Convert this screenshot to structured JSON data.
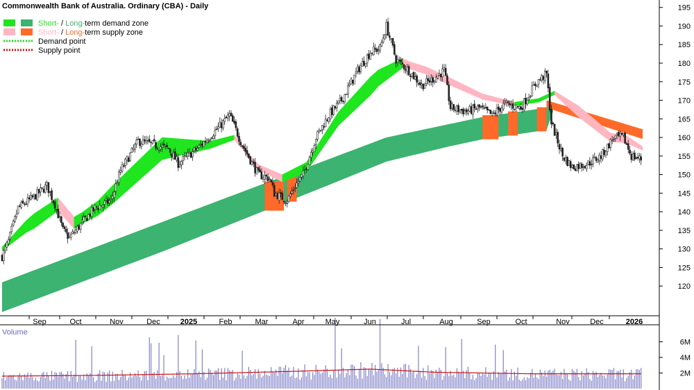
{
  "colors": {
    "short_demand": "#1ee61e",
    "long_demand": "#3cb371",
    "short_supply": "#ffb6c1",
    "long_supply": "#ff6a2a",
    "demand_point": "#1ee61e",
    "supply_point": "#e01010",
    "volume": "#8080c8",
    "volume_ma": "#cc1010",
    "candle": "#222222",
    "grid": "#333333"
  },
  "chart_data": {
    "type": "candlestick",
    "title": "Commonwealth Bank of Australia. Ordinary (CBA) - Daily",
    "legend": {
      "placement": "top-left",
      "items": [
        {
          "parts": [
            "Short-",
            " / ",
            "Long-",
            "term demand zone"
          ],
          "swatches": [
            "short_demand",
            "long_demand"
          ],
          "kind": "box"
        },
        {
          "parts": [
            "Short-",
            " / ",
            "Long-",
            "term supply zone"
          ],
          "swatches": [
            "short_supply",
            "long_supply"
          ],
          "kind": "box"
        },
        {
          "parts": [
            "Demand point"
          ],
          "swatches": [
            "demand_point"
          ],
          "kind": "dots"
        },
        {
          "parts": [
            "Supply point"
          ],
          "swatches": [
            "supply_point"
          ],
          "kind": "dots"
        }
      ]
    },
    "x_labels": [
      "Sep",
      "Oct",
      "Nov",
      "Dec",
      "2025",
      "Feb",
      "Mar",
      "Apr",
      "May",
      "Jun",
      "Jul",
      "Aug",
      "Sep",
      "Oct",
      "Nov",
      "Dec",
      "2026"
    ],
    "x_label_bold": [
      false,
      false,
      false,
      false,
      true,
      false,
      false,
      false,
      false,
      false,
      false,
      false,
      false,
      false,
      false,
      false,
      true
    ],
    "price_axis": {
      "ylim": [
        112,
        197
      ],
      "ticks": [
        120,
        125,
        130,
        135,
        140,
        145,
        150,
        155,
        160,
        165,
        170,
        175,
        180,
        185,
        190,
        195
      ]
    },
    "volume_axis": {
      "title": "Volume",
      "ylim": [
        0,
        8
      ],
      "tick_labels": [
        "6M",
        "4M",
        "2M"
      ],
      "ticks": [
        6,
        4,
        2
      ]
    },
    "price_anchors": [
      [
        0,
        128
      ],
      [
        4,
        132
      ],
      [
        10,
        141
      ],
      [
        20,
        144
      ],
      [
        28,
        147
      ],
      [
        33,
        142
      ],
      [
        38,
        135
      ],
      [
        42,
        133
      ],
      [
        50,
        137
      ],
      [
        58,
        141
      ],
      [
        68,
        143
      ],
      [
        74,
        151
      ],
      [
        85,
        159
      ],
      [
        95,
        158
      ],
      [
        104,
        157
      ],
      [
        110,
        153
      ],
      [
        122,
        157
      ],
      [
        136,
        163
      ],
      [
        142,
        166
      ],
      [
        150,
        158
      ],
      [
        160,
        150
      ],
      [
        167,
        149
      ],
      [
        170,
        145
      ],
      [
        178,
        143
      ],
      [
        183,
        147
      ],
      [
        188,
        150
      ],
      [
        196,
        160
      ],
      [
        204,
        166
      ],
      [
        212,
        170
      ],
      [
        222,
        178
      ],
      [
        230,
        183
      ],
      [
        236,
        184
      ],
      [
        240,
        190
      ],
      [
        246,
        181
      ],
      [
        254,
        178
      ],
      [
        262,
        174
      ],
      [
        270,
        176
      ],
      [
        276,
        178
      ],
      [
        280,
        168
      ],
      [
        290,
        167
      ],
      [
        298,
        168
      ],
      [
        306,
        166
      ],
      [
        314,
        169
      ],
      [
        324,
        168
      ],
      [
        334,
        175
      ],
      [
        340,
        177
      ],
      [
        343,
        164
      ],
      [
        350,
        155
      ],
      [
        356,
        152
      ],
      [
        366,
        153
      ],
      [
        374,
        155
      ],
      [
        382,
        160
      ],
      [
        388,
        160
      ],
      [
        393,
        155
      ],
      [
        400,
        154
      ]
    ],
    "volume_anchors": [
      [
        0,
        1.6
      ],
      [
        60,
        1.7
      ],
      [
        120,
        1.9
      ],
      [
        180,
        2.2
      ],
      [
        230,
        2.5
      ],
      [
        270,
        2.1
      ],
      [
        330,
        1.9
      ],
      [
        400,
        1.9
      ]
    ],
    "zones": {
      "long": [
        {
          "x": [
            0,
            400
          ],
          "top": [
            [
              0,
              121
            ],
            [
              80,
              134
            ],
            [
              160,
              147
            ],
            [
              240,
              160
            ],
            [
              300,
              165.5
            ],
            [
              340,
              168
            ],
            [
              400,
              170
            ]
          ],
          "width": [
            [
              0,
              8
            ],
            [
              100,
              8
            ],
            [
              200,
              7
            ],
            [
              280,
              6
            ],
            [
              340,
              6
            ],
            [
              345,
              0
            ],
            [
              400,
              0
            ]
          ]
        }
      ],
      "short": [
        {
          "x": [
            0,
            400
          ],
          "mid": [
            [
              0,
              130
            ],
            [
              15,
              136
            ],
            [
              35,
              142
            ],
            [
              45,
              137
            ],
            [
              60,
              141
            ],
            [
              75,
              147
            ],
            [
              100,
              157
            ],
            [
              130,
              158
            ],
            [
              145,
              160
            ],
            [
              160,
              152
            ],
            [
              175,
              149
            ],
            [
              190,
              152
            ],
            [
              210,
              165
            ],
            [
              235,
              176
            ],
            [
              250,
              180
            ],
            [
              265,
              178
            ],
            [
              280,
              175
            ],
            [
              300,
              171
            ],
            [
              320,
              169
            ],
            [
              335,
              170
            ],
            [
              345,
              172
            ],
            [
              360,
              167
            ],
            [
              380,
              160
            ],
            [
              390,
              159.5
            ],
            [
              400,
              157
            ]
          ],
          "width": [
            [
              0,
              1
            ],
            [
              20,
              4
            ],
            [
              50,
              3
            ],
            [
              70,
              5
            ],
            [
              100,
              6
            ],
            [
              130,
              2
            ],
            [
              150,
              1
            ],
            [
              200,
              3
            ],
            [
              230,
              5
            ],
            [
              255,
              2
            ],
            [
              280,
              2
            ],
            [
              320,
              1
            ],
            [
              345,
              1
            ],
            [
              360,
              3
            ],
            [
              390,
              2
            ],
            [
              400,
              1
            ]
          ]
        }
      ]
    }
  }
}
